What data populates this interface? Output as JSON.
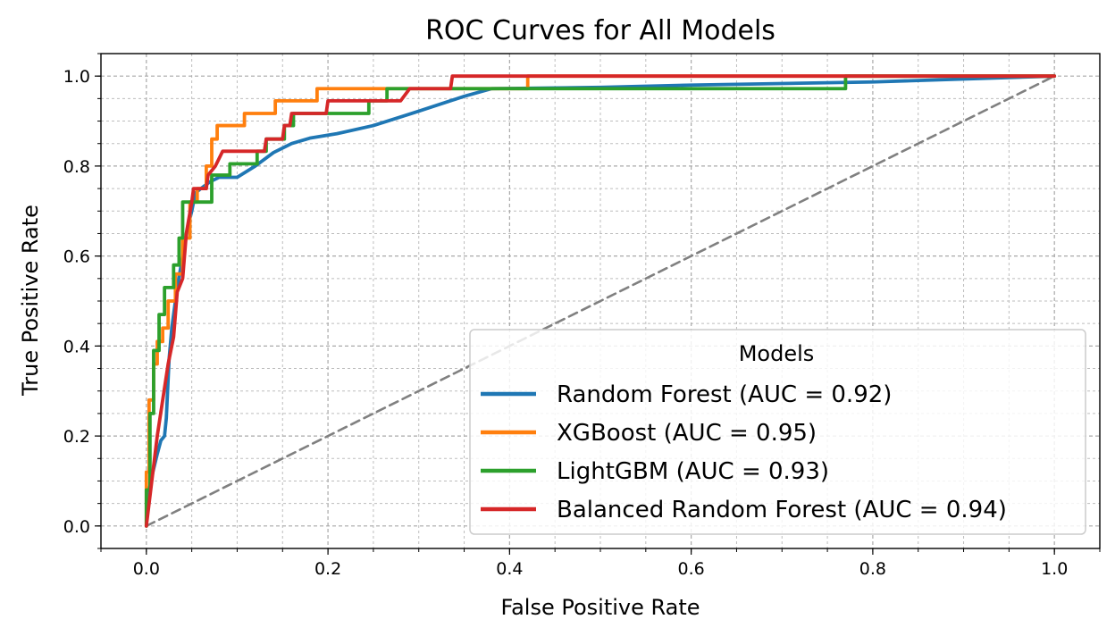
{
  "chart_data": {
    "type": "line",
    "title": "ROC Curves for All Models",
    "xlabel": "False Positive Rate",
    "ylabel": "True Positive Rate",
    "xlim": [
      -0.05,
      1.05
    ],
    "ylim": [
      -0.05,
      1.05
    ],
    "x_ticks": [
      0.0,
      0.2,
      0.4,
      0.6,
      0.8,
      1.0
    ],
    "y_ticks": [
      0.0,
      0.2,
      0.4,
      0.6,
      0.8,
      1.0
    ],
    "x_tick_labels": [
      "0.0",
      "0.2",
      "0.4",
      "0.6",
      "0.8",
      "1.0"
    ],
    "y_tick_labels": [
      "0.0",
      "0.2",
      "0.4",
      "0.6",
      "0.8",
      "1.0"
    ],
    "minor_step": 0.05,
    "grid": true,
    "legend": {
      "title": "Models",
      "placement": "lower-right"
    },
    "series": [
      {
        "name": "Random Forest (AUC = 0.92)",
        "color": "#1f77b4",
        "points": [
          [
            0.0,
            0.0
          ],
          [
            0.002,
            0.07
          ],
          [
            0.006,
            0.11
          ],
          [
            0.012,
            0.16
          ],
          [
            0.016,
            0.19
          ],
          [
            0.02,
            0.2
          ],
          [
            0.022,
            0.24
          ],
          [
            0.025,
            0.37
          ],
          [
            0.028,
            0.44
          ],
          [
            0.034,
            0.53
          ],
          [
            0.04,
            0.6
          ],
          [
            0.045,
            0.66
          ],
          [
            0.05,
            0.7
          ],
          [
            0.054,
            0.74
          ],
          [
            0.06,
            0.75
          ],
          [
            0.07,
            0.765
          ],
          [
            0.08,
            0.775
          ],
          [
            0.1,
            0.775
          ],
          [
            0.12,
            0.8
          ],
          [
            0.14,
            0.83
          ],
          [
            0.16,
            0.85
          ],
          [
            0.18,
            0.862
          ],
          [
            0.21,
            0.872
          ],
          [
            0.25,
            0.89
          ],
          [
            0.3,
            0.922
          ],
          [
            0.35,
            0.955
          ],
          [
            0.38,
            0.972
          ],
          [
            0.5,
            0.975
          ],
          [
            0.6,
            0.98
          ],
          [
            0.8,
            0.987
          ],
          [
            1.0,
            1.0
          ]
        ]
      },
      {
        "name": "XGBoost (AUC = 0.95)",
        "color": "#ff7f0e",
        "points": [
          [
            0.0,
            0.0
          ],
          [
            0.0,
            0.12
          ],
          [
            0.003,
            0.12
          ],
          [
            0.003,
            0.28
          ],
          [
            0.008,
            0.28
          ],
          [
            0.008,
            0.36
          ],
          [
            0.012,
            0.36
          ],
          [
            0.012,
            0.41
          ],
          [
            0.018,
            0.41
          ],
          [
            0.018,
            0.44
          ],
          [
            0.024,
            0.44
          ],
          [
            0.024,
            0.5
          ],
          [
            0.032,
            0.5
          ],
          [
            0.032,
            0.56
          ],
          [
            0.04,
            0.56
          ],
          [
            0.04,
            0.64
          ],
          [
            0.048,
            0.64
          ],
          [
            0.048,
            0.72
          ],
          [
            0.056,
            0.72
          ],
          [
            0.056,
            0.75
          ],
          [
            0.066,
            0.75
          ],
          [
            0.066,
            0.8
          ],
          [
            0.072,
            0.8
          ],
          [
            0.072,
            0.86
          ],
          [
            0.078,
            0.86
          ],
          [
            0.078,
            0.89
          ],
          [
            0.108,
            0.89
          ],
          [
            0.108,
            0.917
          ],
          [
            0.142,
            0.917
          ],
          [
            0.142,
            0.945
          ],
          [
            0.188,
            0.945
          ],
          [
            0.188,
            0.972
          ],
          [
            0.42,
            0.972
          ],
          [
            0.42,
            1.0
          ],
          [
            1.0,
            1.0
          ]
        ]
      },
      {
        "name": "LightGBM (AUC = 0.93)",
        "color": "#2ca02c",
        "points": [
          [
            0.0,
            0.0
          ],
          [
            0.0,
            0.08
          ],
          [
            0.004,
            0.08
          ],
          [
            0.004,
            0.25
          ],
          [
            0.008,
            0.25
          ],
          [
            0.008,
            0.39
          ],
          [
            0.014,
            0.39
          ],
          [
            0.014,
            0.47
          ],
          [
            0.02,
            0.47
          ],
          [
            0.02,
            0.53
          ],
          [
            0.03,
            0.53
          ],
          [
            0.03,
            0.58
          ],
          [
            0.036,
            0.58
          ],
          [
            0.036,
            0.64
          ],
          [
            0.04,
            0.64
          ],
          [
            0.04,
            0.72
          ],
          [
            0.072,
            0.72
          ],
          [
            0.072,
            0.78
          ],
          [
            0.092,
            0.78
          ],
          [
            0.092,
            0.805
          ],
          [
            0.122,
            0.805
          ],
          [
            0.122,
            0.833
          ],
          [
            0.132,
            0.833
          ],
          [
            0.132,
            0.86
          ],
          [
            0.152,
            0.86
          ],
          [
            0.152,
            0.89
          ],
          [
            0.162,
            0.89
          ],
          [
            0.162,
            0.917
          ],
          [
            0.245,
            0.917
          ],
          [
            0.245,
            0.945
          ],
          [
            0.265,
            0.945
          ],
          [
            0.265,
            0.972
          ],
          [
            0.77,
            0.972
          ],
          [
            0.77,
            1.0
          ],
          [
            1.0,
            1.0
          ]
        ]
      },
      {
        "name": "Balanced Random Forest (AUC = 0.94)",
        "color": "#d62728",
        "points": [
          [
            0.0,
            0.0
          ],
          [
            0.006,
            0.1
          ],
          [
            0.012,
            0.2
          ],
          [
            0.018,
            0.28
          ],
          [
            0.024,
            0.36
          ],
          [
            0.03,
            0.42
          ],
          [
            0.034,
            0.52
          ],
          [
            0.04,
            0.55
          ],
          [
            0.044,
            0.65
          ],
          [
            0.05,
            0.72
          ],
          [
            0.052,
            0.75
          ],
          [
            0.066,
            0.75
          ],
          [
            0.068,
            0.78
          ],
          [
            0.076,
            0.8
          ],
          [
            0.084,
            0.833
          ],
          [
            0.13,
            0.833
          ],
          [
            0.132,
            0.86
          ],
          [
            0.15,
            0.86
          ],
          [
            0.152,
            0.89
          ],
          [
            0.158,
            0.89
          ],
          [
            0.16,
            0.917
          ],
          [
            0.198,
            0.917
          ],
          [
            0.2,
            0.945
          ],
          [
            0.28,
            0.945
          ],
          [
            0.29,
            0.972
          ],
          [
            0.335,
            0.972
          ],
          [
            0.337,
            1.0
          ],
          [
            1.0,
            1.0
          ]
        ]
      },
      {
        "name": "",
        "color": "#808080",
        "dashed": true,
        "points": [
          [
            0.0,
            0.0
          ],
          [
            1.0,
            1.0
          ]
        ]
      }
    ]
  }
}
